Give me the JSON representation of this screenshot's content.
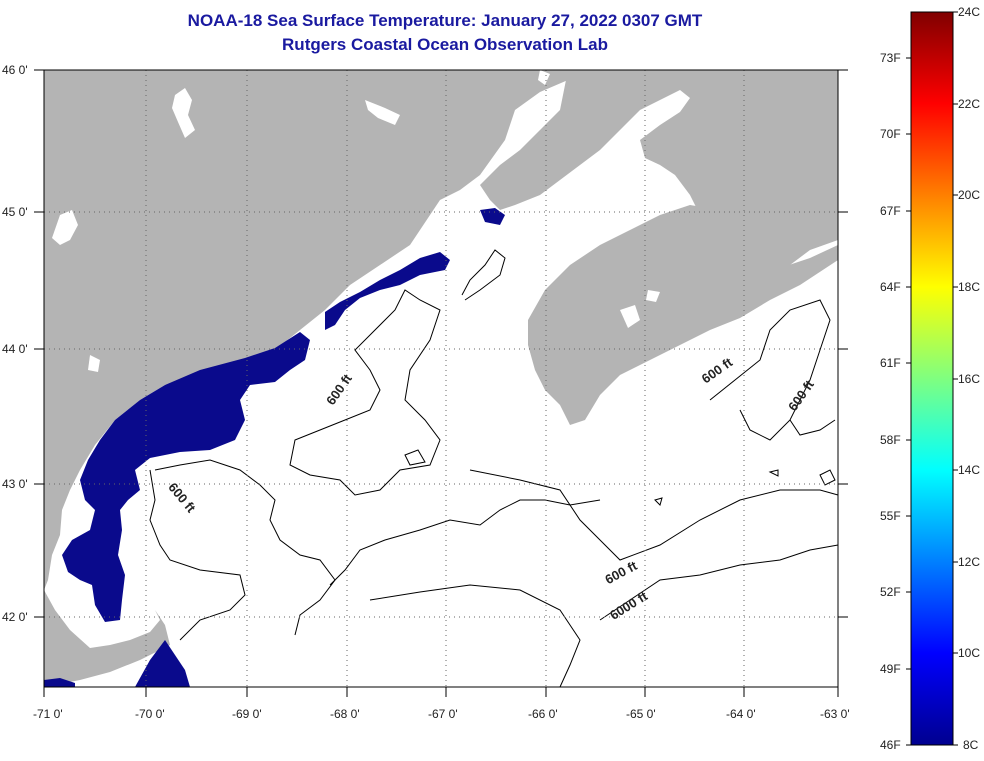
{
  "title": {
    "line1": "NOAA-18 Sea Surface Temperature:  January 27, 2022 0307 GMT",
    "line2": "Rutgers Coastal Ocean Observation Lab"
  },
  "map": {
    "lon_ticks": [
      "-71 0'",
      "-70 0'",
      "-69 0'",
      "-68 0'",
      "-67 0'",
      "-66 0'",
      "-65 0'",
      "-64 0'",
      "-63 0'"
    ],
    "lat_ticks": [
      "46 0'",
      "45 0'",
      "44 0'",
      "43 0'",
      "42 0'"
    ],
    "contour_labels": [
      "600 ft",
      "600 ft",
      "600 ft",
      "600 ft",
      "600 ft",
      "6000 ft"
    ],
    "colors": {
      "land": "#b4b4b4",
      "water": "#ffffff",
      "sst_cold": "#0a0a8c",
      "contour": "#000000"
    }
  },
  "colorbar": {
    "f_labels": [
      "73F",
      "70F",
      "67F",
      "64F",
      "61F",
      "58F",
      "55F",
      "52F",
      "49F",
      "46F"
    ],
    "c_labels": [
      "24C",
      "22C",
      "20C",
      "18C",
      "16C",
      "14C",
      "12C",
      "10C",
      "8C"
    ]
  }
}
